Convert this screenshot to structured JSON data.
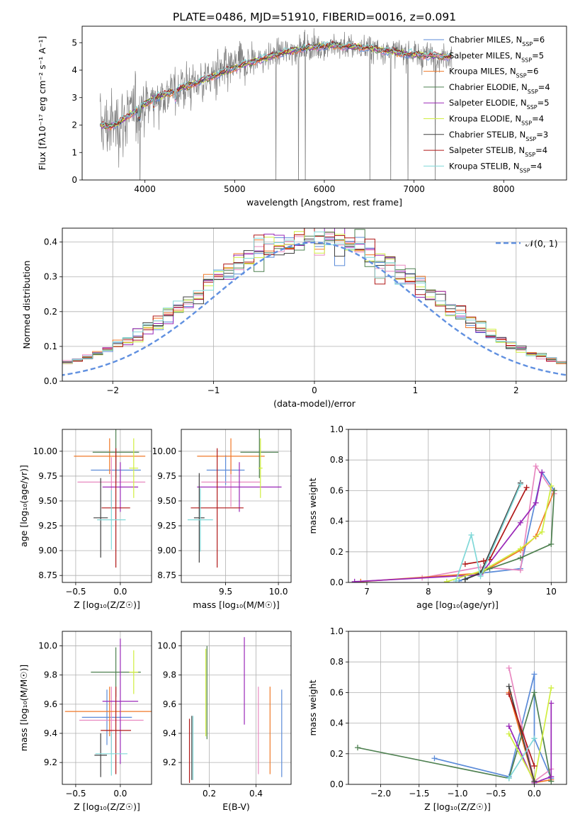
{
  "figure": {
    "title": "PLATE=0486, MJD=51910, FIBERID=0016, z=0.091"
  },
  "colors": {
    "Chabrier MILES": "#5b8bd8",
    "Salpeter MILES": "#e888c0",
    "Kroupa MILES": "#f07828",
    "Chabrier ELODIE": "#4e8050",
    "Salpeter ELODIE": "#9a28b8",
    "Kroupa ELODIE": "#d0ee40",
    "Chabrier STELIB": "#404040",
    "Salpeter STELIB": "#b01818",
    "Kroupa STELIB": "#80d8d8",
    "data": "#808080",
    "normal": "#6090e0"
  },
  "chart_data": [
    {
      "type": "line",
      "name": "spectrum",
      "xlabel": "wavelength [Angstrom, rest frame]",
      "ylabel": "Flux [fλ10⁻¹⁷ erg cm⁻² s⁻¹ A⁻¹]",
      "xlim": [
        3300,
        8700
      ],
      "ylim": [
        0,
        5.6
      ],
      "xticks": [
        4000,
        5000,
        6000,
        7000,
        8000
      ],
      "yticks": [
        0,
        1,
        2,
        3,
        4,
        5
      ],
      "grid": false,
      "legend_position": "right",
      "legend": [
        "Chabrier MILES, N_SSP=6",
        "Salpeter MILES, N_SSP=5",
        "Kroupa MILES, N_SSP=6",
        "Chabrier ELODIE, N_SSP=4",
        "Salpeter ELODIE, N_SSP=5",
        "Kroupa ELODIE, N_SSP=4",
        "Chabrier STELIB, N_SSP=3",
        "Salpeter STELIB, N_SSP=4",
        "Kroupa STELIB, N_SSP=4"
      ],
      "model_continuum": {
        "x": [
          3500,
          3600,
          3700,
          3800,
          3900,
          4000,
          4100,
          4200,
          4300,
          4400,
          4500,
          4700,
          4900,
          5100,
          5300,
          5500,
          5700,
          5900,
          6100,
          6300,
          6500,
          6700,
          6900,
          7100,
          7300,
          7420
        ],
        "y": [
          2.0,
          1.95,
          2.05,
          2.3,
          2.5,
          2.75,
          3.0,
          3.1,
          3.2,
          3.35,
          3.45,
          3.7,
          3.95,
          4.2,
          4.4,
          4.6,
          4.75,
          4.85,
          4.9,
          4.85,
          4.8,
          4.7,
          4.6,
          4.55,
          4.5,
          4.5
        ]
      }
    },
    {
      "type": "line",
      "name": "residual_histogram",
      "xlabel": "(data-model)/error",
      "ylabel": "Normed distribution",
      "xlim": [
        -2.5,
        2.5
      ],
      "ylim": [
        0,
        0.44
      ],
      "xticks": [
        -2,
        -1,
        0,
        1,
        2
      ],
      "yticks": [
        0.0,
        0.1,
        0.2,
        0.3,
        0.4
      ],
      "grid": true,
      "legend_position": "top-right",
      "reference_curve": "𝒩(0, 1)"
    },
    {
      "type": "scatter",
      "name": "age_vs_Z",
      "xlabel": "Z [log₁₀(Z/Z☉)]",
      "ylabel": "age  [log₁₀(age/yr)]",
      "xlim": [
        -0.65,
        0.35
      ],
      "ylim": [
        8.68,
        10.22
      ],
      "xticks": [
        -0.5,
        0.0
      ],
      "yticks": [
        8.75,
        9.0,
        9.25,
        9.5,
        9.75,
        10.0
      ],
      "grid": true,
      "points": [
        {
          "model": "Chabrier MILES",
          "x": -0.05,
          "y": 9.81,
          "xerr": 0.28,
          "yerr": 0.15
        },
        {
          "model": "Salpeter MILES",
          "x": -0.1,
          "y": 9.69,
          "xerr": 0.38,
          "yerr": 0.25
        },
        {
          "model": "Kroupa MILES",
          "x": -0.12,
          "y": 9.95,
          "xerr": 0.4,
          "yerr": 0.18
        },
        {
          "model": "Chabrier ELODIE",
          "x": -0.05,
          "y": 9.99,
          "xerr": 0.26,
          "yerr": 0.26
        },
        {
          "model": "Salpeter ELODIE",
          "x": 0.0,
          "y": 9.64,
          "xerr": 0.2,
          "yerr": 0.25
        },
        {
          "model": "Kroupa ELODIE",
          "x": 0.15,
          "y": 9.83,
          "xerr": 0.05,
          "yerr": 0.3
        },
        {
          "model": "Chabrier STELIB",
          "x": -0.22,
          "y": 9.33,
          "xerr": 0.08,
          "yerr": 0.4
        },
        {
          "model": "Salpeter STELIB",
          "x": -0.05,
          "y": 9.43,
          "xerr": 0.16,
          "yerr": 0.6
        },
        {
          "model": "Kroupa STELIB",
          "x": -0.1,
          "y": 9.31,
          "xerr": 0.16,
          "yerr": 0.3
        }
      ]
    },
    {
      "type": "scatter",
      "name": "age_vs_mass",
      "xlabel": "mass [log₁₀(M/M☉)]",
      "ylabel": "",
      "xlim": [
        9.08,
        10.12
      ],
      "ylim": [
        8.68,
        10.22
      ],
      "xticks": [
        9.5,
        10.0
      ],
      "yticks": [
        8.75,
        9.0,
        9.25,
        9.5,
        9.75,
        10.0
      ],
      "grid": true,
      "points": [
        {
          "model": "Chabrier MILES",
          "x": 9.5,
          "y": 9.81,
          "xerr": 0.18,
          "yerr": 0.15
        },
        {
          "model": "Salpeter MILES",
          "x": 9.55,
          "y": 9.69,
          "xerr": 0.28,
          "yerr": 0.25
        },
        {
          "model": "Kroupa MILES",
          "x": 9.55,
          "y": 9.95,
          "xerr": 0.32,
          "yerr": 0.18
        },
        {
          "model": "Chabrier ELODIE",
          "x": 9.82,
          "y": 9.99,
          "xerr": 0.18,
          "yerr": 0.26
        },
        {
          "model": "Salpeter ELODIE",
          "x": 9.63,
          "y": 9.64,
          "xerr": 0.4,
          "yerr": 0.25
        },
        {
          "model": "Kroupa ELODIE",
          "x": 9.83,
          "y": 9.83,
          "xerr": 0.02,
          "yerr": 0.3
        },
        {
          "model": "Chabrier STELIB",
          "x": 9.25,
          "y": 9.33,
          "xerr": 0.05,
          "yerr": 0.45
        },
        {
          "model": "Salpeter STELIB",
          "x": 9.42,
          "y": 9.43,
          "xerr": 0.25,
          "yerr": 0.6
        },
        {
          "model": "Kroupa STELIB",
          "x": 9.26,
          "y": 9.31,
          "xerr": 0.12,
          "yerr": 0.32
        }
      ]
    },
    {
      "type": "line",
      "name": "mass_weight_vs_age",
      "xlabel": "age  [log₁₀(age/yr)]",
      "ylabel": "mass weight",
      "xlim": [
        6.7,
        10.25
      ],
      "ylim": [
        0,
        1.0
      ],
      "xticks": [
        7,
        8,
        9,
        10
      ],
      "yticks": [
        0.0,
        0.2,
        0.4,
        0.6,
        0.8,
        1.0
      ],
      "grid": true,
      "series": [
        {
          "model": "Chabrier MILES",
          "x": [
            8.5,
            8.85,
            9.5,
            9.85,
            10.05
          ],
          "y": [
            0.01,
            0.06,
            0.09,
            0.72,
            0.6
          ]
        },
        {
          "model": "Salpeter MILES",
          "x": [
            7.9,
            8.85,
            9.5,
            9.75,
            10.05
          ],
          "y": [
            0.03,
            0.1,
            0.08,
            0.76,
            0.58
          ]
        },
        {
          "model": "Kroupa MILES",
          "x": [
            6.9,
            8.85,
            9.5,
            9.75,
            10.05
          ],
          "y": [
            0.005,
            0.06,
            0.21,
            0.3,
            0.6
          ]
        },
        {
          "model": "Chabrier ELODIE",
          "x": [
            8.6,
            9.0,
            9.5,
            10.0,
            10.05
          ],
          "y": [
            0.02,
            0.09,
            0.16,
            0.25,
            0.6
          ]
        },
        {
          "model": "Salpeter ELODIE",
          "x": [
            6.8,
            8.85,
            9.5,
            9.75,
            9.85
          ],
          "y": [
            0.005,
            0.05,
            0.39,
            0.52,
            0.72
          ]
        },
        {
          "model": "Kroupa ELODIE",
          "x": [
            8.3,
            8.9,
            9.5,
            9.85,
            10.0
          ],
          "y": [
            0.005,
            0.08,
            0.22,
            0.33,
            0.63
          ]
        },
        {
          "model": "Chabrier STELIB",
          "x": [
            8.6,
            8.85,
            9.5
          ],
          "y": [
            0.02,
            0.06,
            0.65
          ]
        },
        {
          "model": "Salpeter STELIB",
          "x": [
            8.6,
            8.9,
            9.0,
            9.6
          ],
          "y": [
            0.12,
            0.14,
            0.15,
            0.62
          ]
        },
        {
          "model": "Kroupa STELIB",
          "x": [
            8.45,
            8.7,
            8.85,
            9.5
          ],
          "y": [
            0.01,
            0.31,
            0.04,
            0.64
          ]
        }
      ]
    },
    {
      "type": "scatter",
      "name": "mass_vs_Z",
      "xlabel": "Z [log₁₀(Z/Z☉)]",
      "ylabel": "mass [log₁₀(M/M☉)]",
      "xlim": [
        -0.65,
        0.35
      ],
      "ylim": [
        9.05,
        10.1
      ],
      "xticks": [
        -0.5,
        0.0
      ],
      "yticks": [
        9.2,
        9.4,
        9.6,
        9.8,
        10.0
      ],
      "grid": true,
      "points": [
        {
          "model": "Chabrier MILES",
          "x": -0.15,
          "y": 9.51,
          "xerr": 0.28,
          "yerr": 0.19
        },
        {
          "model": "Salpeter MILES",
          "x": -0.1,
          "y": 9.49,
          "xerr": 0.36,
          "yerr": 0.23
        },
        {
          "model": "Kroupa MILES",
          "x": -0.12,
          "y": 9.55,
          "xerr": 0.5,
          "yerr": 0.17
        },
        {
          "model": "Chabrier ELODIE",
          "x": -0.05,
          "y": 9.82,
          "xerr": 0.28,
          "yerr": 0.17
        },
        {
          "model": "Salpeter ELODIE",
          "x": 0.0,
          "y": 9.62,
          "xerr": 0.2,
          "yerr": 0.43
        },
        {
          "model": "Kroupa ELODIE",
          "x": 0.15,
          "y": 9.82,
          "xerr": 0.05,
          "yerr": 0.15
        },
        {
          "model": "Chabrier STELIB",
          "x": -0.22,
          "y": 9.25,
          "xerr": 0.07,
          "yerr": 0.15
        },
        {
          "model": "Salpeter STELIB",
          "x": -0.05,
          "y": 9.42,
          "xerr": 0.17,
          "yerr": 0.3
        },
        {
          "model": "Kroupa STELIB",
          "x": -0.1,
          "y": 9.26,
          "xerr": 0.18,
          "yerr": 0.15
        }
      ]
    },
    {
      "type": "scatter",
      "name": "mass_vs_EBV",
      "xlabel": "E(B-V)",
      "ylabel": "",
      "xlim": [
        0.08,
        0.55
      ],
      "ylim": [
        9.05,
        10.1
      ],
      "xticks": [
        0.2,
        0.4
      ],
      "yticks": [
        9.2,
        9.4,
        9.6,
        9.8,
        10.0
      ],
      "grid": true,
      "points": [
        {
          "model": "Chabrier MILES",
          "x": 0.51,
          "y": 9.4,
          "yerr": 0.3
        },
        {
          "model": "Salpeter MILES",
          "x": 0.41,
          "y": 9.42,
          "yerr": 0.3
        },
        {
          "model": "Kroupa MILES",
          "x": 0.46,
          "y": 9.42,
          "yerr": 0.3
        },
        {
          "model": "Chabrier ELODIE",
          "x": 0.19,
          "y": 9.68,
          "yerr": 0.32
        },
        {
          "model": "Salpeter ELODIE",
          "x": 0.35,
          "y": 9.76,
          "yerr": 0.3
        },
        {
          "model": "Kroupa ELODIE",
          "x": 0.185,
          "y": 9.68,
          "yerr": 0.3
        },
        {
          "model": "Chabrier STELIB",
          "x": 0.125,
          "y": 9.3,
          "yerr": 0.22
        },
        {
          "model": "Salpeter STELIB",
          "x": 0.115,
          "y": 9.28,
          "yerr": 0.22
        },
        {
          "model": "Kroupa STELIB",
          "x": 0.13,
          "y": 9.3,
          "yerr": 0.22
        }
      ]
    },
    {
      "type": "line",
      "name": "mass_weight_vs_Z",
      "xlabel": "Z [log₁₀(Z/Z☉)]",
      "ylabel": "mass weight",
      "xlim": [
        -2.42,
        0.42
      ],
      "ylim": [
        0,
        1.0
      ],
      "xticks": [
        -2.0,
        -1.5,
        -1.0,
        -0.5,
        0.0
      ],
      "yticks": [
        0.0,
        0.2,
        0.4,
        0.6,
        0.8,
        1.0
      ],
      "grid": true,
      "series": [
        {
          "model": "Chabrier MILES",
          "x": [
            -1.3,
            -0.33,
            0.0,
            0.0,
            0.22
          ],
          "y": [
            0.17,
            0.05,
            0.72,
            0.3,
            0.04
          ]
        },
        {
          "model": "Salpeter MILES",
          "x": [
            -0.33,
            0.0,
            0.22
          ],
          "y": [
            0.76,
            0.02,
            0.1
          ]
        },
        {
          "model": "Kroupa MILES",
          "x": [
            -0.33,
            0.0,
            0.22
          ],
          "y": [
            0.6,
            0.01,
            0.03
          ]
        },
        {
          "model": "Chabrier ELODIE",
          "x": [
            -2.3,
            -0.33,
            0.0,
            0.22
          ],
          "y": [
            0.24,
            0.04,
            0.6,
            0.02
          ]
        },
        {
          "model": "Salpeter ELODIE",
          "x": [
            -0.33,
            0.0,
            0.22,
            0.22
          ],
          "y": [
            0.38,
            0.01,
            0.05,
            0.53
          ]
        },
        {
          "model": "Kroupa ELODIE",
          "x": [
            -0.33,
            0.0,
            0.22
          ],
          "y": [
            0.33,
            0.02,
            0.63
          ]
        },
        {
          "model": "Chabrier STELIB",
          "x": [
            -0.33,
            0.0
          ],
          "y": [
            0.64,
            0.02
          ]
        },
        {
          "model": "Salpeter STELIB",
          "x": [
            -0.33,
            0.0
          ],
          "y": [
            0.59,
            0.12
          ]
        },
        {
          "model": "Kroupa STELIB",
          "x": [
            -0.33,
            0.0
          ],
          "y": [
            0.04,
            0.3
          ]
        }
      ]
    }
  ]
}
